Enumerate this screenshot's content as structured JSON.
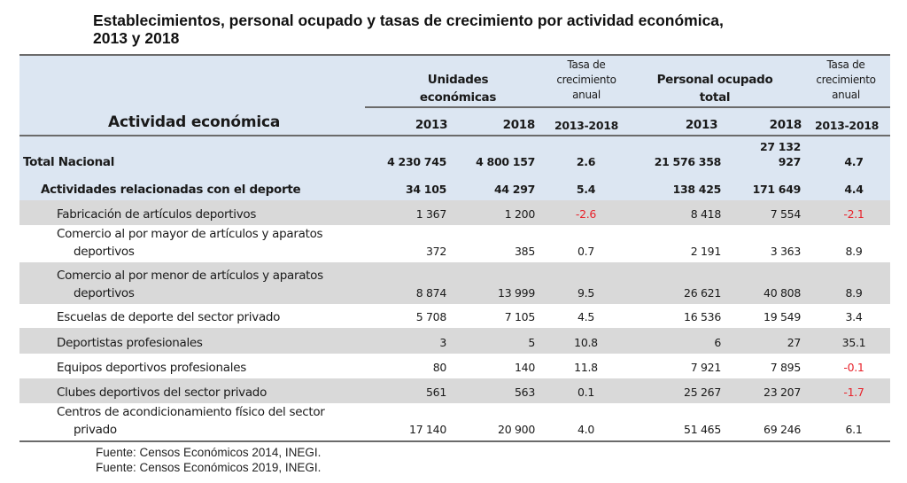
{
  "title": {
    "line1": "Establecimientos, personal ocupado y tasas de crecimiento por actividad económica,",
    "line2": "2013 y 2018"
  },
  "header": {
    "activity_label": "Actividad económica",
    "units_group": {
      "line1": "Unidades",
      "line2": "económicas"
    },
    "units_rate": {
      "line1": "Tasa de",
      "line2": "crecimiento",
      "line3": "anual"
    },
    "staff_group": {
      "line1": "Personal ocupado",
      "line2": "total"
    },
    "staff_rate": {
      "line1": "Tasa de",
      "line2": "crecimiento",
      "line3": "anual"
    },
    "years": {
      "u2013": "2013",
      "u2018": "2018",
      "urate": "2013-2018",
      "p2013": "2013",
      "p2018": "2018",
      "prate": "2013-2018"
    }
  },
  "colors": {
    "header_bg": "#dce6f2",
    "stripe_bg": "#d9d9d9",
    "negative": "#e8222b"
  },
  "rows": [
    {
      "label": "Total Nacional",
      "u2013": "4 230 745",
      "u2018": "4 800 157",
      "urate": "2.6",
      "p2013": "21 576 358",
      "p2018_line1": "27 132",
      "p2018": "927",
      "prate": "4.7"
    },
    {
      "label": "Actividades relacionadas con el deporte",
      "u2013": "34 105",
      "u2018": "44 297",
      "urate": "5.4",
      "p2013": "138 425",
      "p2018": "171 649",
      "prate": "4.4"
    },
    {
      "label": "Fabricación de artículos deportivos",
      "u2013": "1 367",
      "u2018": "1 200",
      "urate": "-2.6",
      "p2013": "8 418",
      "p2018": "7 554",
      "prate": "-2.1"
    },
    {
      "label_line1": "Comercio al por mayor de artículos y aparatos",
      "label_line2": "deportivos",
      "u2013": "372",
      "u2018": "385",
      "urate": "0.7",
      "p2013": "2 191",
      "p2018": "3 363",
      "prate": "8.9"
    },
    {
      "label_line1": "Comercio al por menor de artículos y aparatos",
      "label_line2": "deportivos",
      "u2013": "8 874",
      "u2018": "13 999",
      "urate": "9.5",
      "p2013": "26 621",
      "p2018": "40 808",
      "prate": "8.9"
    },
    {
      "label": "Escuelas de deporte del sector privado",
      "u2013": "5 708",
      "u2018": "7 105",
      "urate": "4.5",
      "p2013": "16 536",
      "p2018": "19 549",
      "prate": "3.4"
    },
    {
      "label": "Deportistas profesionales",
      "u2013": "3",
      "u2018": "5",
      "urate": "10.8",
      "p2013": "6",
      "p2018": "27",
      "prate": "35.1"
    },
    {
      "label": "Equipos deportivos profesionales",
      "u2013": "80",
      "u2018": "140",
      "urate": "11.8",
      "p2013": "7 921",
      "p2018": "7 895",
      "prate": "-0.1"
    },
    {
      "label": "Clubes deportivos del sector privado",
      "u2013": "561",
      "u2018": "563",
      "urate": "0.1",
      "p2013": "25 267",
      "p2018": "23 207",
      "prate": "-1.7"
    },
    {
      "label_line1": "Centros de acondicionamiento físico del sector",
      "label_line2": "privado",
      "u2013": "17 140",
      "u2018": "20 900",
      "urate": "4.0",
      "p2013": "51 465",
      "p2018": "69 246",
      "prate": "6.1"
    }
  ],
  "footnotes": [
    "Fuente: Censos Económicos 2014, INEGI.",
    "Fuente: Censos Económicos 2019, INEGI."
  ]
}
